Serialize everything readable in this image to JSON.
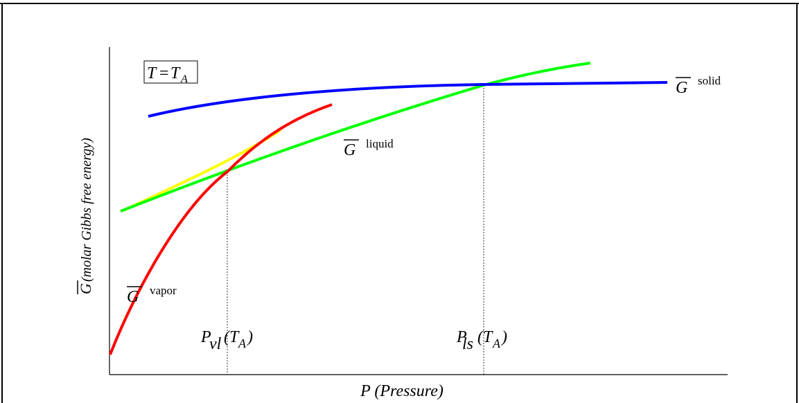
{
  "diagram": {
    "condition_box": {
      "lhs": "T",
      "eq": "=",
      "rhs": "T",
      "rhs_sub": "A"
    },
    "y_axis_label": {
      "symbol": "G",
      "text": "(molar Gibbs free energy)"
    },
    "x_axis_label": "P (Pressure)",
    "curves": {
      "solid": {
        "symbol": "G",
        "label": "solid",
        "color": "#0000ff"
      },
      "liquid": {
        "symbol": "G",
        "label": "liquid",
        "color": "#00ff00"
      },
      "vapor": {
        "symbol": "G",
        "label": "vapor",
        "color": "#ff0000"
      },
      "metastable": {
        "color": "#ffff00"
      }
    },
    "markers": {
      "vl": {
        "main": "P",
        "sub": "vl",
        "arg": "(T",
        "arg_sub": "A",
        "close": ")"
      },
      "ls": {
        "main": "P",
        "sub": "ls",
        "arg": "(T",
        "arg_sub": "A",
        "close": ")"
      }
    }
  }
}
